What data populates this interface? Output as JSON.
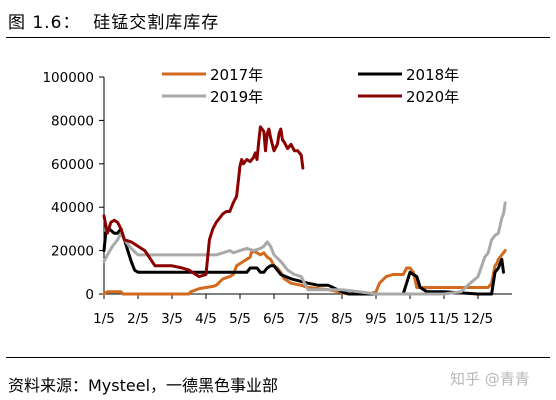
{
  "header": {
    "figure_title": "图 1.6：  硅锰交割库库存"
  },
  "footer": {
    "source": "资料来源：Mysteel，一德黑色事业部",
    "watermark": "知乎 @青青"
  },
  "chart_data": {
    "type": "line",
    "title": "",
    "xlabel": "",
    "ylabel": "",
    "ylim": [
      0,
      100000
    ],
    "yticks": [
      "0",
      "20000",
      "40000",
      "60000",
      "80000",
      "100000"
    ],
    "xticks": [
      "1/5",
      "2/5",
      "3/5",
      "4/5",
      "5/5",
      "6/5",
      "7/5",
      "8/5",
      "9/5",
      "10/5",
      "11/5",
      "12/5"
    ],
    "xlim": [
      0,
      11.8
    ],
    "grid": false,
    "legend_position": "top",
    "series": [
      {
        "name": "2017年",
        "color": "#D2691E",
        "x": [
          0,
          0.1,
          0.5,
          0.55,
          1.0,
          1.5,
          2.0,
          2.5,
          2.55,
          2.8,
          3.0,
          3.2,
          3.3,
          3.5,
          3.7,
          3.8,
          3.9,
          4.0,
          4.1,
          4.2,
          4.3,
          4.35,
          4.5,
          4.6,
          4.7,
          4.8,
          4.9,
          5.0,
          5.1,
          5.2,
          5.3,
          5.5,
          5.8,
          6.0,
          6.3,
          6.6,
          6.9,
          7.0,
          7.2,
          7.5,
          7.8,
          8.0,
          8.1,
          8.3,
          8.5,
          8.6,
          8.8,
          8.9,
          9.0,
          9.1,
          9.2,
          9.5,
          9.6,
          10.0,
          10.5,
          11.0,
          11.2,
          11.3,
          11.4,
          11.45,
          11.5,
          11.55,
          11.6,
          11.8
        ],
        "values": [
          0,
          1000,
          1000,
          0,
          0,
          0,
          0,
          0,
          1000,
          2500,
          3000,
          3500,
          4000,
          7000,
          8000,
          9000,
          13000,
          14000,
          15000,
          16000,
          17000,
          20000,
          19000,
          18000,
          19000,
          17000,
          16000,
          13000,
          12000,
          10000,
          7000,
          5000,
          4000,
          3000,
          2500,
          2000,
          1000,
          500,
          0,
          0,
          0,
          1000,
          5000,
          8000,
          9000,
          9000,
          9000,
          12000,
          12000,
          10000,
          3000,
          3000,
          3000,
          3000,
          3000,
          3000,
          3000,
          3000,
          5000,
          9000,
          13000,
          14000,
          16000,
          20000
        ]
      },
      {
        "name": "2018年",
        "color": "#000000",
        "x": [
          0,
          0.05,
          0.15,
          0.3,
          0.4,
          0.5,
          0.6,
          0.8,
          0.9,
          1.0,
          1.5,
          2.0,
          2.5,
          3.0,
          3.5,
          3.8,
          4.0,
          4.2,
          4.3,
          4.4,
          4.5,
          4.6,
          4.7,
          4.8,
          4.9,
          5.0,
          5.2,
          5.5,
          6.0,
          6.3,
          6.6,
          7.0,
          7.2,
          7.5,
          8.0,
          8.5,
          8.7,
          8.8,
          9.0,
          9.2,
          9.3,
          9.5,
          10.0,
          10.5,
          11.0,
          11.2,
          11.3,
          11.4,
          11.5,
          11.6,
          11.7,
          11.75
        ],
        "values": [
          20000,
          28000,
          30000,
          28000,
          28000,
          30000,
          25000,
          15000,
          11000,
          10000,
          10000,
          10000,
          10000,
          10000,
          10000,
          10000,
          10000,
          10000,
          12000,
          12000,
          12000,
          10000,
          10000,
          12000,
          13000,
          13000,
          9000,
          7000,
          5000,
          4000,
          4000,
          1000,
          0,
          0,
          0,
          0,
          0,
          0,
          10000,
          8000,
          3000,
          1000,
          1000,
          500,
          0,
          0,
          0,
          0,
          10000,
          12000,
          16000,
          10000
        ]
      },
      {
        "name": "2019年",
        "color": "#A9A9A9",
        "x": [
          0,
          0.1,
          0.25,
          0.4,
          0.5,
          0.6,
          0.8,
          1.0,
          1.5,
          2.0,
          2.5,
          2.8,
          3.0,
          3.3,
          3.5,
          3.7,
          3.8,
          4.0,
          4.2,
          4.4,
          4.6,
          4.7,
          4.8,
          4.9,
          5.0,
          5.2,
          5.4,
          5.6,
          5.8,
          6.0,
          6.5,
          7.0,
          7.5,
          8.0,
          8.5,
          9.0,
          9.5,
          10.0,
          10.5,
          10.7,
          11.0,
          11.2,
          11.3,
          11.4,
          11.5,
          11.6,
          11.7,
          11.75,
          11.8
        ],
        "values": [
          15000,
          18000,
          22000,
          25000,
          28000,
          25000,
          21000,
          18000,
          18000,
          18000,
          18000,
          18000,
          18000,
          18000,
          19000,
          20000,
          19000,
          20000,
          21000,
          20000,
          21000,
          22000,
          24000,
          22000,
          18000,
          15000,
          11000,
          9000,
          8000,
          2000,
          2000,
          2000,
          1000,
          0,
          0,
          0,
          0,
          0,
          1000,
          4000,
          8000,
          17000,
          19000,
          25000,
          27000,
          28000,
          35000,
          37000,
          42000
        ]
      },
      {
        "name": "2020年",
        "color": "#8B0000",
        "x": [
          0,
          0.05,
          0.1,
          0.2,
          0.3,
          0.4,
          0.5,
          0.6,
          0.8,
          1.0,
          1.2,
          1.5,
          1.8,
          2.0,
          2.3,
          2.5,
          2.8,
          3.0,
          3.1,
          3.2,
          3.3,
          3.4,
          3.5,
          3.6,
          3.7,
          3.8,
          3.9,
          4.0,
          4.05,
          4.1,
          4.2,
          4.3,
          4.4,
          4.45,
          4.5,
          4.55,
          4.6,
          4.7,
          4.75,
          4.8,
          4.85,
          4.9,
          5.0,
          5.1,
          5.15,
          5.2,
          5.25,
          5.3,
          5.4,
          5.5,
          5.6,
          5.7,
          5.8,
          5.85
        ],
        "values": [
          36000,
          32000,
          28000,
          33000,
          34000,
          33000,
          30000,
          25000,
          24000,
          22000,
          20000,
          13000,
          13000,
          13000,
          12000,
          11000,
          8000,
          9000,
          25000,
          30000,
          33000,
          35000,
          37000,
          38000,
          38000,
          42000,
          45000,
          59000,
          62000,
          60000,
          62000,
          61000,
          63000,
          65000,
          62000,
          70000,
          77000,
          75000,
          66000,
          74000,
          76000,
          72000,
          66000,
          69000,
          74000,
          76000,
          71000,
          70000,
          67000,
          69000,
          66000,
          66000,
          64000,
          58000
        ]
      }
    ]
  }
}
